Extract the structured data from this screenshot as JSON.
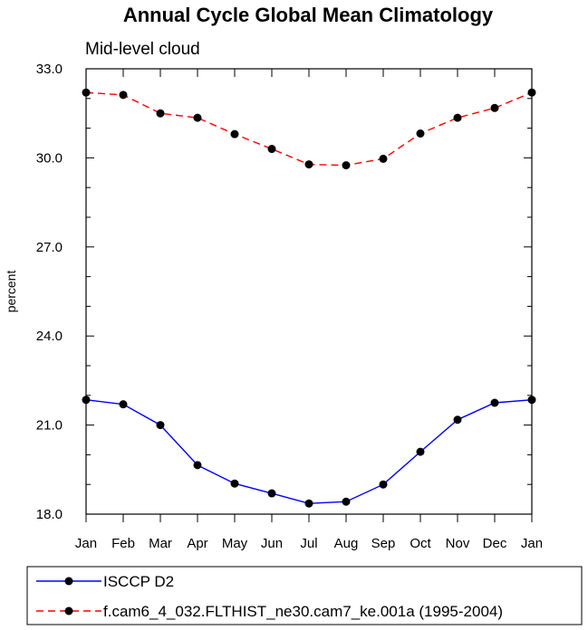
{
  "chart_data": {
    "type": "line",
    "title": "Annual Cycle Global Mean Climatology",
    "subtitle": "Mid-level cloud",
    "ylabel": "percent",
    "xlabel": "",
    "categories": [
      "Jan",
      "Feb",
      "Mar",
      "Apr",
      "May",
      "Jun",
      "Jul",
      "Aug",
      "Sep",
      "Oct",
      "Nov",
      "Dec",
      "Jan"
    ],
    "ylim": [
      18.0,
      33.0
    ],
    "yticks": [
      "18.0",
      "21.0",
      "24.0",
      "27.0",
      "30.0",
      "33.0"
    ],
    "yticks_minor_step": 1.0,
    "grid": false,
    "legend_position": "bottom",
    "series": [
      {
        "name": "ISCCP D2",
        "color": "#0000ff",
        "line_style": "solid",
        "marker": "filled-circle",
        "values": [
          21.85,
          21.7,
          21.0,
          19.65,
          19.03,
          18.7,
          18.36,
          18.42,
          19.0,
          20.1,
          21.18,
          21.75,
          21.85
        ]
      },
      {
        "name": "f.cam6_4_032.FLTHIST_ne30.cam7_ke.001a (1995-2004)",
        "color": "#ff0000",
        "line_style": "dashed",
        "marker": "filled-circle",
        "values": [
          32.2,
          32.12,
          31.5,
          31.35,
          30.8,
          30.3,
          29.78,
          29.75,
          29.97,
          30.82,
          31.35,
          31.68,
          32.2
        ]
      }
    ]
  }
}
